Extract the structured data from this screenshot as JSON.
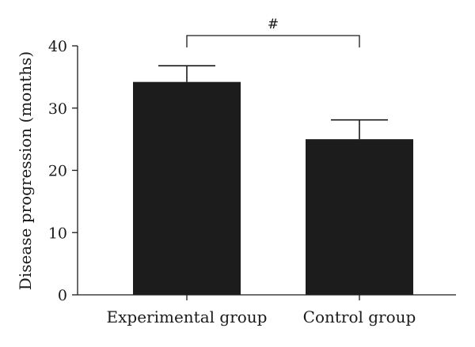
{
  "chart_data": {
    "type": "bar",
    "title": "",
    "xlabel": "",
    "ylabel": "Disease progression (months)",
    "ylim": [
      0,
      40
    ],
    "yticks": [
      0,
      10,
      20,
      30,
      40
    ],
    "categories": [
      "Experimental group",
      "Control group"
    ],
    "values": [
      34.2,
      25.0
    ],
    "error_upper": [
      36.8,
      28.1
    ],
    "significance": {
      "between": [
        0,
        1
      ],
      "label": "#"
    },
    "bar_color": "#1c1c1c",
    "grid": false
  }
}
